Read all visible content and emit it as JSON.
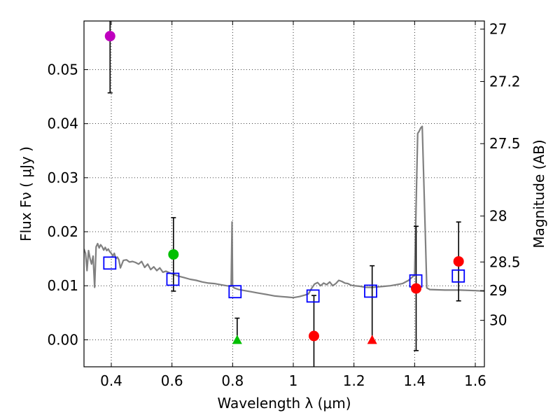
{
  "chart_data": {
    "type": "scatter",
    "xlabel": "Wavelength  λ (μm)",
    "ylabel_left": "Flux  Fν  ( μJy )",
    "ylabel_right": "Magnitude (AB)",
    "xlim": [
      0.31,
      1.63
    ],
    "ylim": [
      -0.005,
      0.059
    ],
    "x_ticks": [
      0.4,
      0.6,
      0.8,
      1.0,
      1.2,
      1.4,
      1.6
    ],
    "x_tick_labels": [
      "0.4",
      "0.6",
      "0.8",
      "1",
      "1.2",
      "1.4",
      "1.6"
    ],
    "y_ticks": [
      0.0,
      0.01,
      0.02,
      0.03,
      0.04,
      0.05
    ],
    "y_tick_labels": [
      "0.00",
      "0.01",
      "0.02",
      "0.03",
      "0.04",
      "0.05"
    ],
    "right_ticks": [
      {
        "label": "27",
        "flux": 0.0575
      },
      {
        "label": "27.2",
        "flux": 0.0478
      },
      {
        "label": "27.5",
        "flux": 0.0363
      },
      {
        "label": "28",
        "flux": 0.0229
      },
      {
        "label": "28.5",
        "flux": 0.0144
      },
      {
        "label": "29",
        "flux": 0.0091
      },
      {
        "label": "30",
        "flux": 0.0036
      }
    ],
    "grid": true,
    "model_spectrum": {
      "color": "#808080",
      "x": [
        0.31,
        0.315,
        0.32,
        0.325,
        0.33,
        0.335,
        0.34,
        0.345,
        0.35,
        0.355,
        0.36,
        0.365,
        0.37,
        0.375,
        0.38,
        0.385,
        0.39,
        0.395,
        0.4,
        0.405,
        0.41,
        0.415,
        0.42,
        0.425,
        0.43,
        0.44,
        0.45,
        0.46,
        0.47,
        0.48,
        0.49,
        0.5,
        0.51,
        0.52,
        0.53,
        0.54,
        0.55,
        0.56,
        0.57,
        0.58,
        0.6,
        0.62,
        0.64,
        0.66,
        0.68,
        0.7,
        0.72,
        0.74,
        0.76,
        0.78,
        0.795,
        0.798,
        0.8,
        0.802,
        0.805,
        0.82,
        0.84,
        0.86,
        0.88,
        0.9,
        0.92,
        0.94,
        0.96,
        0.98,
        1.0,
        1.02,
        1.04,
        1.05,
        1.06,
        1.07,
        1.08,
        1.09,
        1.1,
        1.11,
        1.12,
        1.13,
        1.14,
        1.15,
        1.16,
        1.17,
        1.18,
        1.19,
        1.2,
        1.22,
        1.24,
        1.26,
        1.28,
        1.3,
        1.32,
        1.34,
        1.36,
        1.38,
        1.4,
        1.405,
        1.41,
        1.415,
        1.42,
        1.425,
        1.43,
        1.435,
        1.44,
        1.45,
        1.5,
        1.55,
        1.6,
        1.63
      ],
      "y": [
        0.0168,
        0.016,
        0.0128,
        0.0165,
        0.015,
        0.014,
        0.0155,
        0.0097,
        0.0172,
        0.0178,
        0.017,
        0.0176,
        0.0172,
        0.0166,
        0.0171,
        0.0165,
        0.0168,
        0.0163,
        0.016,
        0.0155,
        0.016,
        0.015,
        0.0153,
        0.0148,
        0.0133,
        0.0147,
        0.0148,
        0.0144,
        0.0145,
        0.0143,
        0.014,
        0.0145,
        0.0134,
        0.014,
        0.013,
        0.0135,
        0.0128,
        0.0133,
        0.0125,
        0.0127,
        0.0122,
        0.0118,
        0.0115,
        0.0112,
        0.011,
        0.0107,
        0.0105,
        0.0104,
        0.0102,
        0.01,
        0.0099,
        0.0218,
        0.01,
        0.0098,
        0.0096,
        0.0093,
        0.0091,
        0.0089,
        0.0087,
        0.0085,
        0.0083,
        0.0081,
        0.008,
        0.0079,
        0.0078,
        0.008,
        0.0083,
        0.0085,
        0.0095,
        0.0103,
        0.0106,
        0.01,
        0.0105,
        0.0102,
        0.0107,
        0.01,
        0.0104,
        0.011,
        0.0108,
        0.0105,
        0.0104,
        0.0101,
        0.01,
        0.0099,
        0.0097,
        0.0097,
        0.0098,
        0.0099,
        0.01,
        0.0102,
        0.0104,
        0.011,
        0.012,
        0.025,
        0.0382,
        0.0386,
        0.0392,
        0.0395,
        0.03,
        0.02,
        0.0096,
        0.0093,
        0.0092,
        0.0092,
        0.0091,
        0.009
      ]
    },
    "model_photometry": {
      "marker": "open-square",
      "color": "#0000ff",
      "points": [
        {
          "x": 0.395,
          "y": 0.0142
        },
        {
          "x": 0.603,
          "y": 0.0112
        },
        {
          "x": 0.808,
          "y": 0.0089
        },
        {
          "x": 1.065,
          "y": 0.0081
        },
        {
          "x": 1.255,
          "y": 0.009
        },
        {
          "x": 1.404,
          "y": 0.0109
        },
        {
          "x": 1.544,
          "y": 0.0118
        }
      ]
    },
    "observed": [
      {
        "x": 0.396,
        "y": 0.0562,
        "err_lo": 0.0105,
        "err_hi": 0.0035,
        "marker": "circle",
        "color": "#bf00bf"
      },
      {
        "x": 0.605,
        "y": 0.0158,
        "err_lo": 0.0068,
        "err_hi": 0.0068,
        "marker": "circle",
        "color": "#00bf00"
      },
      {
        "x": 0.815,
        "y": 0.0,
        "err_lo": 0.0,
        "err_hi": 0.004,
        "marker": "triangle",
        "color": "#00bf00"
      },
      {
        "x": 1.068,
        "y": 0.0007,
        "err_lo": 0.008,
        "err_hi": 0.0075,
        "marker": "circle",
        "color": "#ff0000"
      },
      {
        "x": 1.26,
        "y": 0.0,
        "err_lo": 0.0,
        "err_hi": 0.0137,
        "marker": "triangle",
        "color": "#ff0000"
      },
      {
        "x": 1.405,
        "y": 0.0095,
        "err_lo": 0.0115,
        "err_hi": 0.0115,
        "marker": "circle",
        "color": "#ff0000"
      },
      {
        "x": 1.545,
        "y": 0.0145,
        "err_lo": 0.0073,
        "err_hi": 0.0073,
        "marker": "circle",
        "color": "#ff0000"
      }
    ]
  }
}
